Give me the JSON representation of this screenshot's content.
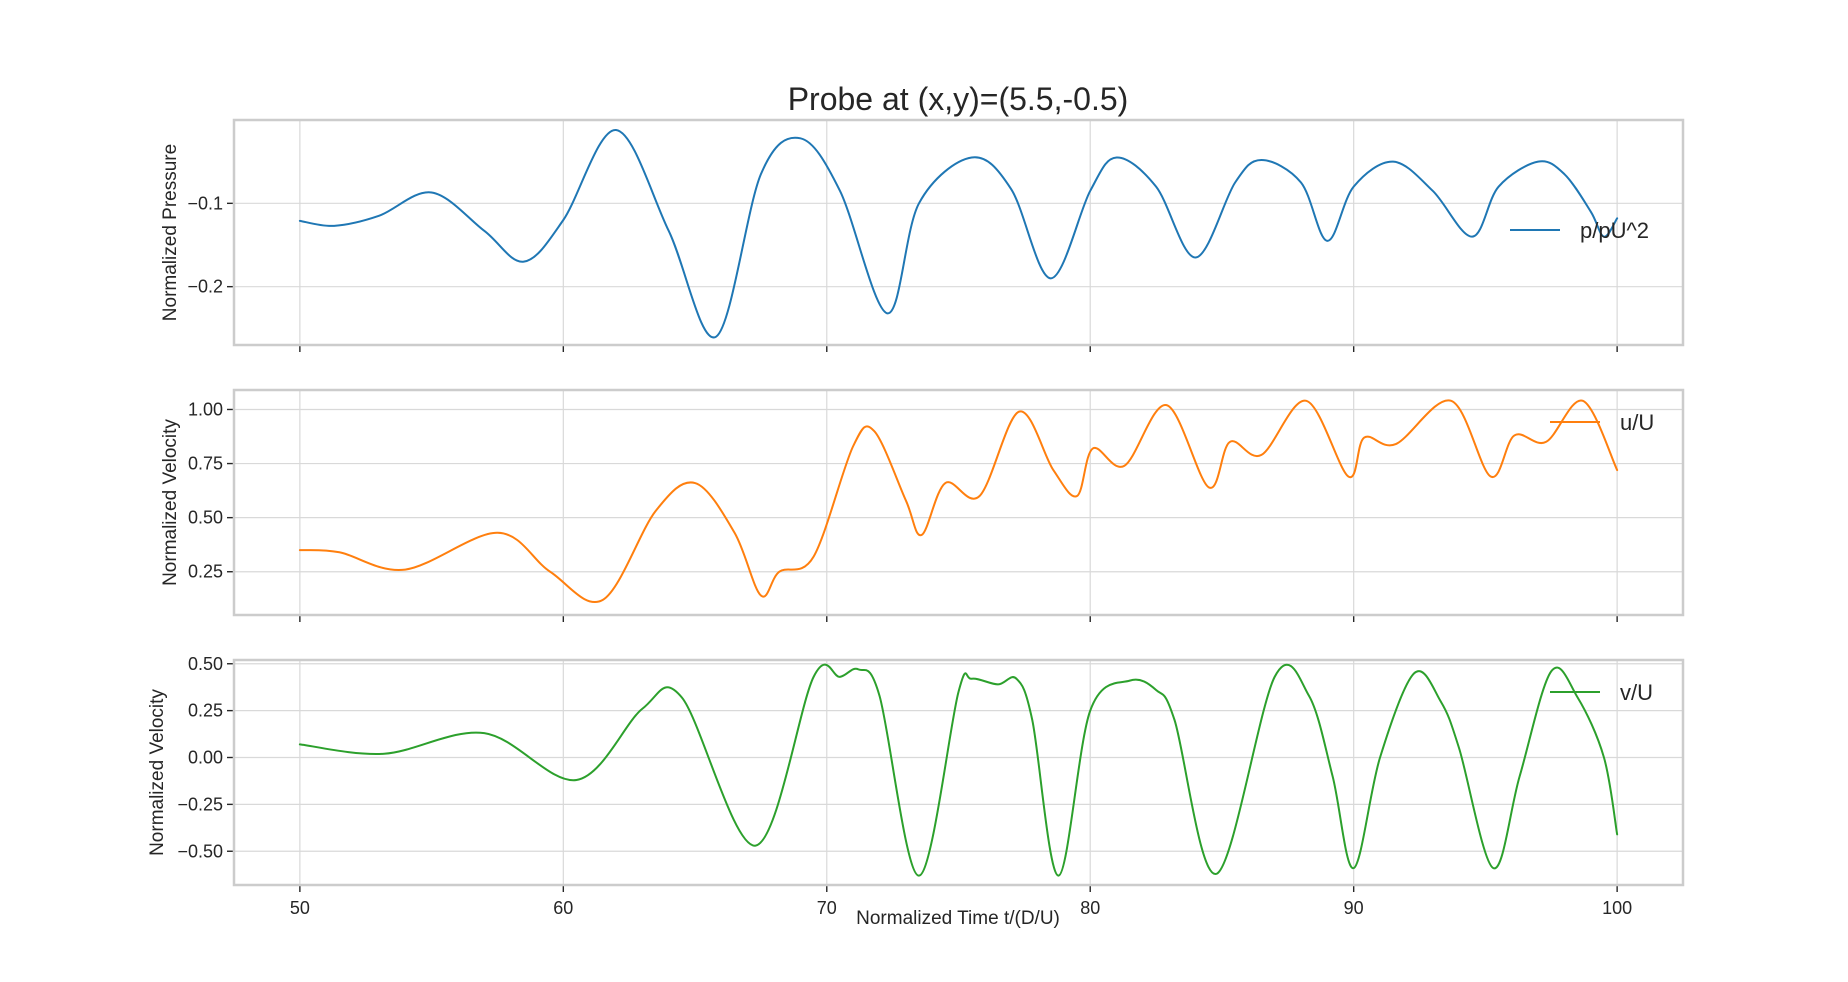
{
  "chart_data": {
    "type": "line",
    "title": "Probe at (x,y)=(5.5,-0.5)",
    "xlabel": "Normalized Time t/(D/U)",
    "xlim": [
      47.5,
      102.5
    ],
    "xticks": [
      50,
      60,
      70,
      80,
      90,
      100
    ],
    "xtick_labels": [
      "50",
      "60",
      "70",
      "80",
      "90",
      "100"
    ],
    "grid": true,
    "subplots": [
      {
        "ylabel": "Normalized Pressure",
        "ylim": [
          -0.27,
          0.0
        ],
        "yticks": [
          -0.1,
          -0.2
        ],
        "ytick_labels": [
          "−0.1",
          "−0.2"
        ],
        "legend_placement": "right",
        "series": [
          {
            "name": "p/pU^2",
            "color": "#1f77b4",
            "x": [
              50,
              51.3,
              53,
              55,
              57,
              58.5,
              60,
              62,
              64,
              65.8,
              67.5,
              69,
              70.5,
              72.3,
              73.5,
              75.5,
              77,
              78.5,
              80,
              81,
              82.5,
              84,
              85.5,
              86.5,
              88,
              89,
              90,
              91.5,
              93,
              94.5,
              95.5,
              97,
              98,
              99,
              99.5,
              100
            ],
            "y": [
              -0.121,
              -0.127,
              -0.115,
              -0.087,
              -0.133,
              -0.17,
              -0.12,
              -0.012,
              -0.133,
              -0.26,
              -0.065,
              -0.022,
              -0.085,
              -0.232,
              -0.1,
              -0.045,
              -0.083,
              -0.19,
              -0.085,
              -0.045,
              -0.08,
              -0.165,
              -0.075,
              -0.048,
              -0.075,
              -0.145,
              -0.08,
              -0.05,
              -0.085,
              -0.14,
              -0.08,
              -0.05,
              -0.065,
              -0.11,
              -0.14,
              -0.118
            ]
          }
        ]
      },
      {
        "ylabel": "Normalized Velocity",
        "ylim": [
          0.05,
          1.09
        ],
        "yticks": [
          0.25,
          0.5,
          0.75,
          1.0
        ],
        "ytick_labels": [
          "0.25",
          "0.50",
          "0.75",
          "1.00"
        ],
        "legend_placement": "upper right",
        "series": [
          {
            "name": "u/U",
            "color": "#ff7f0e",
            "x": [
              50,
              51.5,
              54,
              57.5,
              59.5,
              61.5,
              63.5,
              65,
              66.5,
              67.5,
              68.2,
              69.5,
              71,
              71.8,
              73,
              73.6,
              74.5,
              75.8,
              77.3,
              78.6,
              79.5,
              80.1,
              81.3,
              82.9,
              84.5,
              85.3,
              86.5,
              88.2,
              89.8,
              90.4,
              91.6,
              93.7,
              95.2,
              96.1,
              97.3,
              98.7,
              100
            ],
            "y": [
              0.35,
              0.34,
              0.26,
              0.43,
              0.25,
              0.12,
              0.53,
              0.66,
              0.43,
              0.14,
              0.25,
              0.32,
              0.83,
              0.9,
              0.58,
              0.42,
              0.66,
              0.6,
              0.99,
              0.72,
              0.6,
              0.82,
              0.74,
              1.02,
              0.64,
              0.85,
              0.79,
              1.04,
              0.69,
              0.87,
              0.84,
              1.04,
              0.69,
              0.88,
              0.85,
              1.04,
              0.72
            ]
          }
        ]
      },
      {
        "ylabel": "Normalized Velocity",
        "ylim": [
          -0.68,
          0.52
        ],
        "yticks": [
          -0.5,
          -0.25,
          0.0,
          0.25,
          0.5
        ],
        "ytick_labels": [
          "−0.50",
          "−0.25",
          "0.00",
          "0.25",
          "0.50"
        ],
        "legend_placement": "upper right",
        "series": [
          {
            "name": "v/U",
            "color": "#2ca02c",
            "x": [
              50,
              53.2,
              57,
              60.5,
              63,
              64.5,
              67.3,
              69.5,
              70.5,
              71.2,
              72,
              73.5,
              75,
              75.5,
              76.5,
              77.2,
              77.8,
              78.8,
              80,
              81.5,
              82.5,
              83.2,
              84.8,
              87,
              88.3,
              89.2,
              90,
              91,
              92.3,
              93.3,
              94,
              95.3,
              96.3,
              97.5,
              98.5,
              99.5,
              100
            ],
            "y": [
              0.07,
              0.02,
              0.13,
              -0.12,
              0.26,
              0.32,
              -0.47,
              0.43,
              0.43,
              0.47,
              0.33,
              -0.63,
              0.35,
              0.42,
              0.39,
              0.42,
              0.2,
              -0.63,
              0.25,
              0.41,
              0.36,
              0.2,
              -0.62,
              0.43,
              0.33,
              -0.1,
              -0.59,
              0.0,
              0.45,
              0.3,
              0.05,
              -0.59,
              -0.1,
              0.46,
              0.32,
              0.0,
              -0.41
            ]
          }
        ]
      }
    ]
  }
}
